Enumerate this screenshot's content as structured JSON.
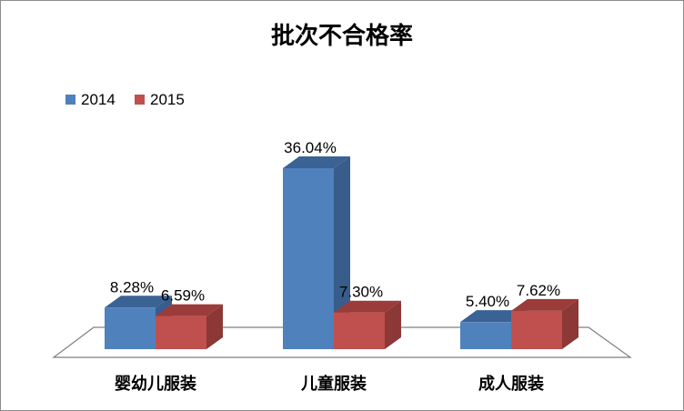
{
  "chart_data": {
    "type": "bar",
    "title": "批次不合格率",
    "categories": [
      "婴幼儿服装",
      "儿童服装",
      "成人服装"
    ],
    "series": [
      {
        "name": "2014",
        "values": [
          8.28,
          36.04,
          5.4
        ],
        "labels": [
          "8.28%",
          "36.04%",
          "5.40%"
        ]
      },
      {
        "name": "2015",
        "values": [
          6.59,
          7.3,
          7.62
        ],
        "labels": [
          "6.59%",
          "7.30%",
          "7.62%"
        ]
      }
    ],
    "ylim": [
      0,
      36.04
    ],
    "legend_position": "top-left",
    "grid": false,
    "three_d": true,
    "colors": {
      "2014": {
        "front": "#4f81bd",
        "side": "#385d8a",
        "top": "#3a6295"
      },
      "2015": {
        "front": "#c0504d",
        "side": "#8c3836",
        "top": "#9b3c3a"
      }
    }
  }
}
